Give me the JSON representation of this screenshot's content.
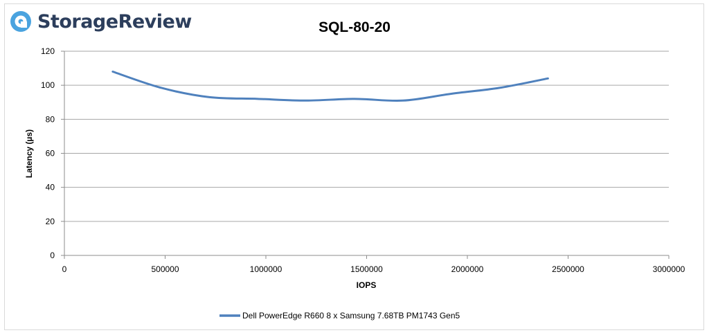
{
  "brand": {
    "name": "StorageReview",
    "text_color": "#2c3e5c",
    "icon_color": "#4aa3df"
  },
  "chart_data": {
    "type": "line",
    "title": "SQL-80-20",
    "xlabel": "IOPS",
    "ylabel": "Latency (µs)",
    "xlim": [
      0,
      3000000
    ],
    "ylim": [
      0,
      120
    ],
    "x_ticks": [
      0,
      500000,
      1000000,
      1500000,
      2000000,
      2500000,
      3000000
    ],
    "y_ticks": [
      0,
      20,
      40,
      60,
      80,
      100,
      120
    ],
    "grid": "horizontal",
    "legend_position": "bottom",
    "series": [
      {
        "name": "Dell PowerEdge R660 8 x Samsung 7.68TB PM1743 Gen5",
        "color": "#4f81bd",
        "x": [
          240000,
          480000,
          720000,
          960000,
          1200000,
          1440000,
          1680000,
          1920000,
          2160000,
          2400000
        ],
        "y": [
          108,
          98.5,
          93,
          92,
          91,
          92,
          91,
          95,
          98.5,
          104
        ]
      }
    ]
  }
}
